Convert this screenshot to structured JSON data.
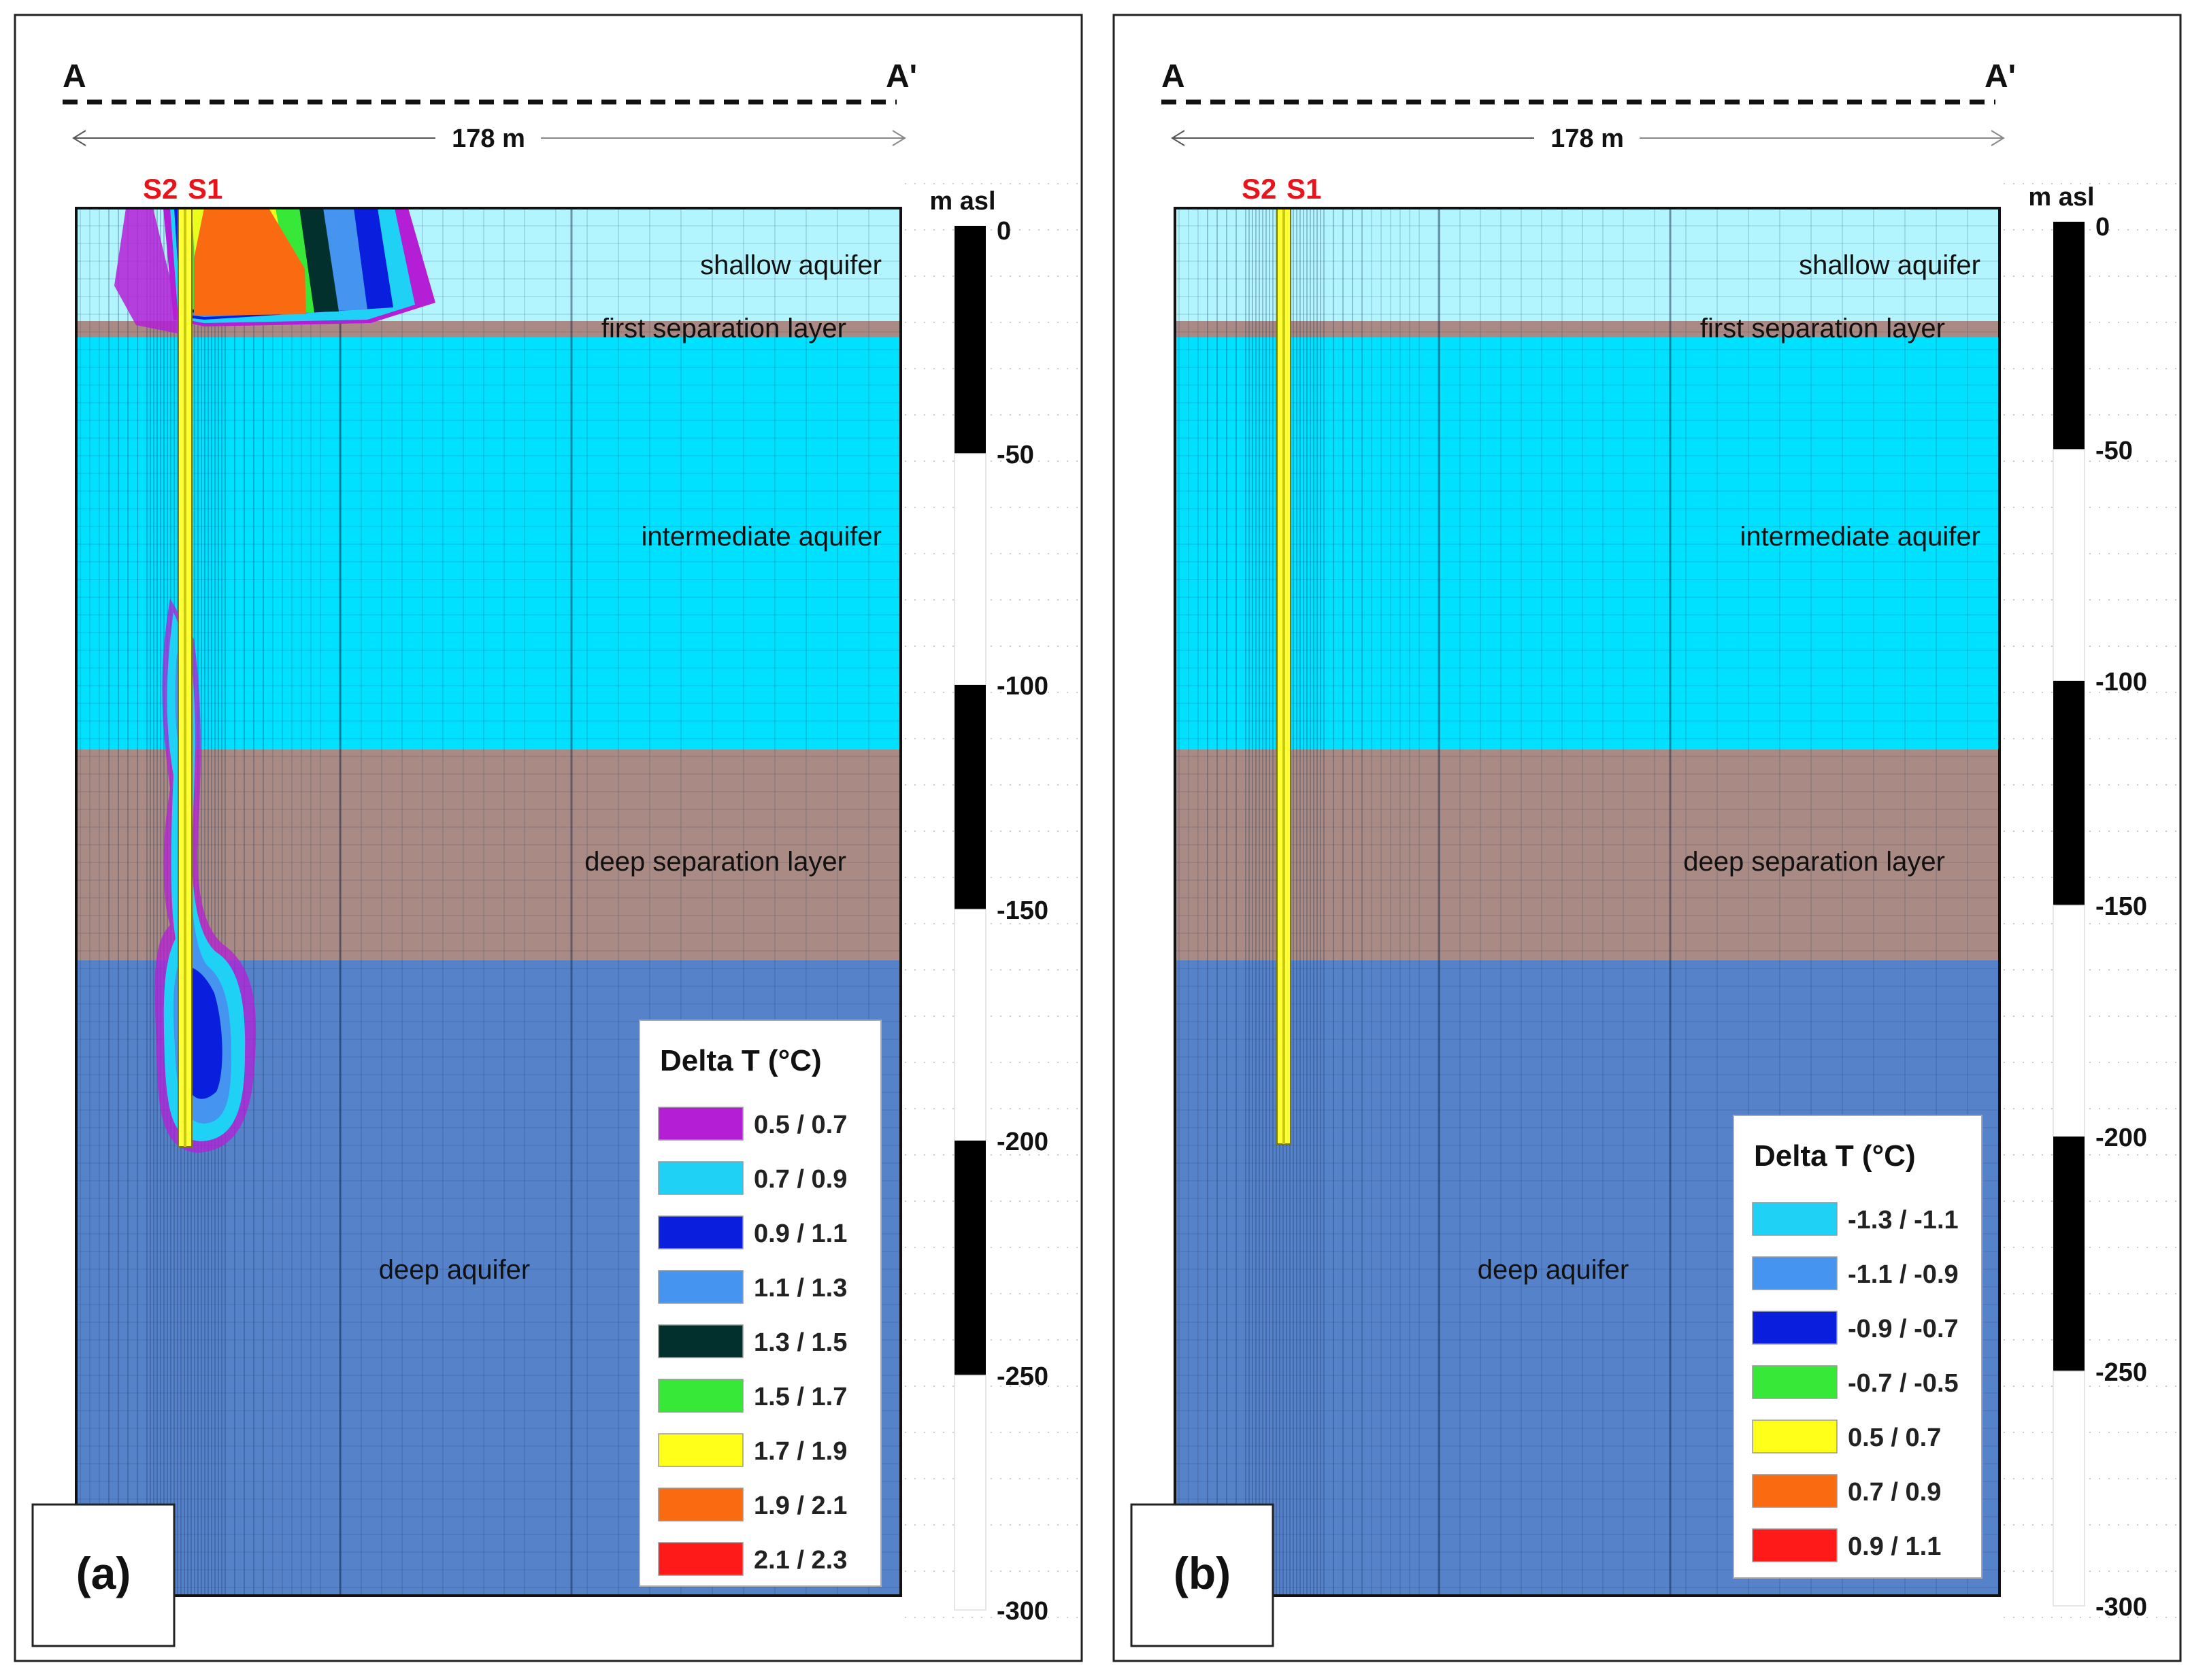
{
  "section": {
    "start": "A",
    "end": "A'",
    "length": "178 m"
  },
  "layers": {
    "shallow": "shallow aquifer",
    "first_sep": "first separation layer",
    "intermediate": "intermediate aquifer",
    "deep_sep": "deep separation layer",
    "deep": "deep aquifer"
  },
  "wells": {
    "s2": "S2",
    "s1": "S1"
  },
  "scale": {
    "unit": "m asl",
    "ticks": [
      {
        "value": 0,
        "label": "0"
      },
      {
        "value": -50,
        "label": "-50"
      },
      {
        "value": -100,
        "label": "-100"
      },
      {
        "value": -150,
        "label": "-150"
      },
      {
        "value": -200,
        "label": "-200"
      },
      {
        "value": -250,
        "label": "-250"
      },
      {
        "value": -300,
        "label": "-300"
      }
    ]
  },
  "colors": {
    "shallow": "#b2f5ff",
    "separation": "#a98a84",
    "intermediate": "#00e0ff",
    "deep": "#5682c9",
    "well": "#ffff33",
    "well_label": "#e8131b"
  },
  "panels": [
    {
      "label": "(a)",
      "legend": {
        "title": "Delta T (°C)",
        "items": [
          {
            "label": "0.5 / 0.7",
            "color": "#b41fd6"
          },
          {
            "label": "0.7 / 0.9",
            "color": "#1fd2f5"
          },
          {
            "label": "0.9 / 1.1",
            "color": "#0a1fde"
          },
          {
            "label": "1.1 / 1.3",
            "color": "#4595f0"
          },
          {
            "label": "1.3 / 1.5",
            "color": "#02302d"
          },
          {
            "label": "1.5 / 1.7",
            "color": "#38e838"
          },
          {
            "label": "1.7 / 1.9",
            "color": "#ffff1a"
          },
          {
            "label": "1.9 / 2.1",
            "color": "#fa6a10"
          },
          {
            "label": "2.1 / 2.3",
            "color": "#ff1a1a"
          }
        ]
      }
    },
    {
      "label": "(b)",
      "legend": {
        "title": "Delta T (°C)",
        "items": [
          {
            "label": "-1.3 / -1.1",
            "color": "#1fd2f5"
          },
          {
            "label": "-1.1 / -0.9",
            "color": "#4595f0"
          },
          {
            "label": "-0.9 / -0.7",
            "color": "#0a1fde"
          },
          {
            "label": "-0.7 / -0.5",
            "color": "#38e838"
          },
          {
            "label": "0.5 / 0.7",
            "color": "#ffff1a"
          },
          {
            "label": "0.7 / 0.9",
            "color": "#fa6a10"
          },
          {
            "label": "0.9 / 1.1",
            "color": "#ff1a1a"
          }
        ]
      }
    }
  ]
}
